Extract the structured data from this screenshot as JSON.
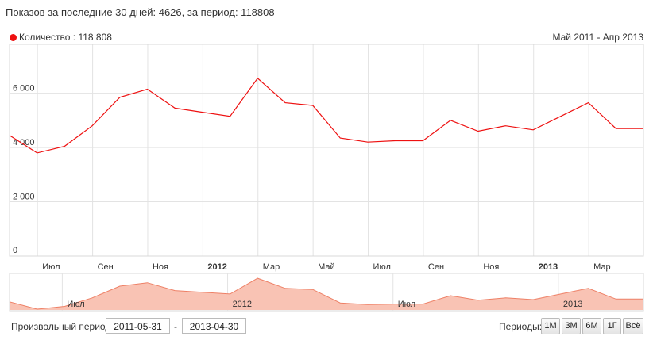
{
  "header": {
    "text": "Показов за последние 30 дней: 4626, за период: 118808"
  },
  "legend": {
    "label": "Количество : 118 808",
    "color": "#ee1111"
  },
  "range_label": "Май 2011 - Апр 2013",
  "controls": {
    "custom_period_label": "Произвольный период:",
    "date_from": "2011-05-31",
    "date_separator": "-",
    "date_to": "2013-04-30",
    "periods_label": "Периоды:",
    "period_buttons": [
      "1М",
      "3М",
      "6М",
      "1Г",
      "Всё"
    ]
  },
  "navigator": {
    "labels": [
      "Июл",
      "2012",
      "Июл",
      "2013"
    ]
  },
  "chart_data": {
    "type": "line",
    "title": "",
    "xlabel": "",
    "ylabel": "",
    "ylim": [
      0,
      7800
    ],
    "y_ticks": [
      0,
      2000,
      4000,
      6000
    ],
    "y_tick_labels": [
      "0",
      "2 000",
      "4 000",
      "6 000"
    ],
    "x_tick_labels": [
      {
        "label": "Июл",
        "bold": false
      },
      {
        "label": "Сен",
        "bold": false
      },
      {
        "label": "Ноя",
        "bold": false
      },
      {
        "label": "2012",
        "bold": true
      },
      {
        "label": "Мар",
        "bold": false
      },
      {
        "label": "Май",
        "bold": false
      },
      {
        "label": "Июл",
        "bold": false
      },
      {
        "label": "Сен",
        "bold": false
      },
      {
        "label": "Ноя",
        "bold": false
      },
      {
        "label": "2013",
        "bold": true
      },
      {
        "label": "Мар",
        "bold": false
      }
    ],
    "grid": true,
    "series": [
      {
        "name": "Количество",
        "color": "#ee1111",
        "x": [
          "2011-05",
          "2011-06",
          "2011-07",
          "2011-08",
          "2011-09",
          "2011-10",
          "2011-11",
          "2011-12",
          "2012-01",
          "2012-02",
          "2012-03",
          "2012-04",
          "2012-05",
          "2012-06",
          "2012-07",
          "2012-08",
          "2012-09",
          "2012-10",
          "2012-11",
          "2012-12",
          "2013-01",
          "2013-02",
          "2013-03",
          "2013-04"
        ],
        "values": [
          4450,
          3800,
          4050,
          4800,
          5850,
          6150,
          5450,
          5300,
          5150,
          6550,
          5650,
          5550,
          4350,
          4200,
          4250,
          4250,
          5000,
          4600,
          4800,
          4650,
          5150,
          5650,
          4700,
          4700
        ]
      }
    ]
  }
}
